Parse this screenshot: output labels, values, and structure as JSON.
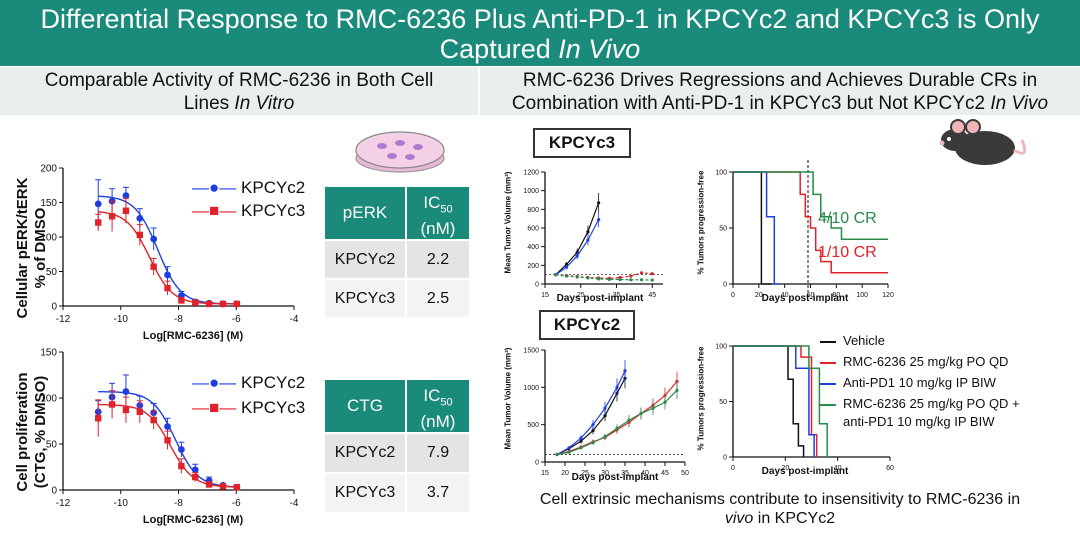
{
  "header": {
    "title_line1": "Differential Response to RMC-6236 Plus Anti-PD-1 in KPCYc2 and KPCYc3 is Only",
    "title_line2_plain": "Captured ",
    "title_line2_italic": "In Vivo"
  },
  "left_section": {
    "line1": "Comparable Activity of RMC-6236 in Both Cell",
    "line2_plain": "Lines ",
    "line2_italic": "In Vitro"
  },
  "right_section": {
    "line1": "RMC-6236 Drives Regressions and Achieves Durable CRs in",
    "line2_plain": "Combination with Anti-PD-1 in KPCYc3 but Not KPCYc2 ",
    "line2_italic": "In Vivo"
  },
  "perk_table": {
    "col1": "pERK",
    "col2_main": "IC",
    "col2_sub": "50",
    "col2_unit": "(nM)",
    "rows": [
      [
        "KPCYc2",
        "2.2"
      ],
      [
        "KPCYc3",
        "2.5"
      ]
    ]
  },
  "ctg_table": {
    "col1": "CTG",
    "col2_main": "IC",
    "col2_sub": "50",
    "col2_unit": "(nM)",
    "rows": [
      [
        "KPCYc2",
        "7.9"
      ],
      [
        "KPCYc3",
        "3.7"
      ]
    ]
  },
  "panels": {
    "kpcyc3": "KPCYc3",
    "kpcyc2": "KPCYc2"
  },
  "legend_invivo": [
    "Vehicle",
    "RMC-6236 25 mg/kg PO QD",
    "Anti-PD1 10 mg/kg IP BIW",
    "RMC-6236 25 mg/kg PO QD +",
    "anti-PD1 10 mg/kg IP BIW"
  ],
  "cr_labels": {
    "combo": "4/10 CR",
    "rmc": "1/10 CR"
  },
  "footer": {
    "line1": "Cell extrinsic mechanisms contribute to insensitivity to RMC-6236 in",
    "line2_italic": "vivo",
    "line2_plain": " in KPCYc2"
  },
  "colors": {
    "teal": "#1a8a7a",
    "blue": "#1f3ee0",
    "red": "#e0222a",
    "green": "#2a8a4a",
    "black": "#111111"
  },
  "chart_data": [
    {
      "id": "perk-dose-response",
      "type": "scatter",
      "title": "",
      "xlabel": "Log[RMC-6236] (M)",
      "ylabel_line1": "Cellular pERK/tERK",
      "ylabel_line2": "% of DMSO",
      "xlim": [
        -12,
        -4
      ],
      "ylim": [
        0,
        200
      ],
      "xticks": [
        -12,
        -10,
        -8,
        -6,
        -4
      ],
      "yticks": [
        0,
        50,
        100,
        150,
        200
      ],
      "x": [
        -10.78,
        -10.3,
        -9.82,
        -9.34,
        -8.86,
        -8.38,
        -7.9,
        -7.42,
        -6.94,
        -6.46,
        -5.98
      ],
      "series": [
        {
          "name": "KPCYc2",
          "color": "#1f3ee0",
          "marker": "circle",
          "values": [
            148,
            152,
            160,
            127,
            97,
            45,
            15,
            6,
            4,
            3,
            3
          ],
          "errors": [
            35,
            18,
            12,
            14,
            16,
            12,
            6,
            3,
            2,
            2,
            2
          ]
        },
        {
          "name": "KPCYc3",
          "color": "#e0222a",
          "marker": "square",
          "values": [
            121,
            130,
            138,
            103,
            57,
            26,
            8,
            5,
            3,
            3,
            3
          ],
          "errors": [
            12,
            22,
            18,
            15,
            12,
            10,
            4,
            2,
            2,
            1,
            1
          ]
        }
      ]
    },
    {
      "id": "ctg-dose-response",
      "type": "scatter",
      "title": "",
      "xlabel": "Log[RMC-6236] (M)",
      "ylabel_line1": "Cell proliferation",
      "ylabel_line2": "(CTG, % DMSO)",
      "xlim": [
        -12,
        -4
      ],
      "ylim": [
        0,
        150
      ],
      "xticks": [
        -12,
        -10,
        -8,
        -6,
        -4
      ],
      "yticks": [
        0,
        50,
        100,
        150
      ],
      "x": [
        -10.78,
        -10.3,
        -9.82,
        -9.34,
        -8.86,
        -8.38,
        -7.9,
        -7.42,
        -6.94,
        -6.46,
        -5.98
      ],
      "series": [
        {
          "name": "KPCYc2",
          "color": "#1f3ee0",
          "marker": "circle",
          "values": [
            85,
            101,
            107,
            92,
            84,
            69,
            44,
            22,
            10,
            5,
            3
          ],
          "errors": [
            12,
            15,
            18,
            10,
            10,
            9,
            8,
            6,
            4,
            2,
            2
          ]
        },
        {
          "name": "KPCYc3",
          "color": "#e0222a",
          "marker": "square",
          "values": [
            78,
            93,
            87,
            85,
            76,
            54,
            26,
            14,
            6,
            4,
            3
          ],
          "errors": [
            20,
            15,
            14,
            12,
            10,
            10,
            8,
            5,
            3,
            2,
            2
          ]
        }
      ]
    },
    {
      "id": "kpcyc3-tumor-volume",
      "type": "line",
      "title": "KPCYc3",
      "xlabel": "Days post-implant",
      "ylabel": "Mean Tumor Volume (mm³)",
      "xlim": [
        15,
        48
      ],
      "ylim": [
        0,
        1200
      ],
      "xticks": [
        15,
        25,
        35,
        45
      ],
      "yticks": [
        0,
        200,
        400,
        600,
        800,
        1000,
        1200
      ],
      "baseline": 100,
      "series": [
        {
          "name": "Vehicle",
          "color": "#111111",
          "x": [
            18,
            21,
            24,
            27,
            30
          ],
          "values": [
            100,
            210,
            340,
            560,
            870
          ]
        },
        {
          "name": "RMC-6236 25 mg/kg PO QD",
          "color": "#e0222a",
          "x": [
            18,
            21,
            24,
            27,
            30,
            33,
            36,
            39,
            42,
            45
          ],
          "values": [
            100,
            90,
            80,
            70,
            65,
            60,
            70,
            85,
            120,
            110
          ]
        },
        {
          "name": "Anti-PD1 10 mg/kg IP BIW",
          "color": "#1f3ee0",
          "x": [
            18,
            21,
            24,
            27,
            30
          ],
          "values": [
            100,
            180,
            300,
            470,
            690
          ]
        },
        {
          "name": "RMC-6236 25 mg/kg PO QD + anti-PD1 10 mg/kg IP BIW",
          "color": "#2a8a4a",
          "x": [
            18,
            21,
            24,
            27,
            30,
            33,
            36,
            39,
            42,
            45
          ],
          "values": [
            100,
            85,
            75,
            65,
            55,
            50,
            48,
            45,
            45,
            42
          ]
        }
      ]
    },
    {
      "id": "kpcyc3-pfs",
      "type": "line",
      "title": "",
      "xlabel": "Days post-implant",
      "ylabel": "% Tumors progression-free",
      "xlim": [
        0,
        120
      ],
      "ylim": [
        0,
        100
      ],
      "xticks": [
        0,
        20,
        40,
        60,
        80,
        100,
        120
      ],
      "yticks": [
        0,
        50,
        100
      ],
      "series": [
        {
          "name": "Vehicle",
          "color": "#111111",
          "x": [
            0,
            20,
            22,
            30
          ],
          "values": [
            100,
            100,
            0,
            0
          ]
        },
        {
          "name": "RMC-6236 25 mg/kg PO QD",
          "color": "#e0222a",
          "x": [
            0,
            48,
            52,
            56,
            60,
            64,
            68,
            76,
            120
          ],
          "values": [
            100,
            100,
            80,
            60,
            50,
            30,
            20,
            10,
            10
          ]
        },
        {
          "name": "Anti-PD1 10 mg/kg IP BIW",
          "color": "#1f3ee0",
          "x": [
            0,
            22,
            26,
            32,
            36
          ],
          "values": [
            100,
            100,
            60,
            0,
            0
          ]
        },
        {
          "name": "RMC-6236 25 mg/kg PO QD + anti-PD1 10 mg/kg IP BIW",
          "color": "#2a8a4a",
          "x": [
            0,
            58,
            62,
            68,
            76,
            84,
            120
          ],
          "values": [
            100,
            100,
            80,
            60,
            50,
            40,
            40
          ]
        }
      ]
    },
    {
      "id": "kpcyc2-tumor-volume",
      "type": "line",
      "title": "KPCYc2",
      "xlabel": "Days post-implant",
      "ylabel": "Mean Tumor Volume (mm³)",
      "xlim": [
        15,
        50
      ],
      "ylim": [
        0,
        1500
      ],
      "xticks": [
        15,
        20,
        25,
        30,
        35,
        40,
        45,
        50
      ],
      "yticks": [
        0,
        500,
        1000,
        1500
      ],
      "baseline": 100,
      "series": [
        {
          "name": "Vehicle",
          "color": "#111111",
          "x": [
            18,
            21,
            24,
            27,
            30,
            33,
            35
          ],
          "values": [
            100,
            180,
            280,
            420,
            620,
            920,
            1120
          ]
        },
        {
          "name": "RMC-6236 25 mg/kg PO QD",
          "color": "#e0222a",
          "x": [
            18,
            21,
            24,
            27,
            30,
            33,
            36,
            39,
            42,
            45,
            48
          ],
          "values": [
            100,
            140,
            200,
            270,
            330,
            430,
            530,
            650,
            760,
            890,
            1080
          ]
        },
        {
          "name": "Anti-PD1 10 mg/kg IP BIW",
          "color": "#1f3ee0",
          "x": [
            18,
            21,
            24,
            27,
            30,
            33,
            35
          ],
          "values": [
            100,
            190,
            320,
            500,
            720,
            1000,
            1220
          ]
        },
        {
          "name": "RMC-6236 25 mg/kg PO QD + anti-PD1 10 mg/kg IP BIW",
          "color": "#2a8a4a",
          "x": [
            18,
            21,
            24,
            27,
            30,
            33,
            36,
            39,
            42,
            45,
            48
          ],
          "values": [
            100,
            130,
            190,
            260,
            340,
            450,
            560,
            650,
            720,
            800,
            960
          ]
        }
      ]
    },
    {
      "id": "kpcyc2-pfs",
      "type": "line",
      "title": "",
      "xlabel": "Days post-implant",
      "ylabel": "% Tumors progression-free",
      "xlim": [
        0,
        60
      ],
      "ylim": [
        0,
        100
      ],
      "xticks": [
        0,
        20,
        40,
        60
      ],
      "yticks": [
        0,
        50,
        100
      ],
      "series": [
        {
          "name": "Vehicle",
          "color": "#111111",
          "x": [
            0,
            19,
            21,
            23,
            25,
            27
          ],
          "values": [
            100,
            100,
            70,
            30,
            10,
            0
          ]
        },
        {
          "name": "RMC-6236 25 mg/kg PO QD",
          "color": "#e0222a",
          "x": [
            0,
            22,
            26,
            30,
            32
          ],
          "values": [
            100,
            100,
            90,
            20,
            0
          ]
        },
        {
          "name": "Anti-PD1 10 mg/kg IP BIW",
          "color": "#1f3ee0",
          "x": [
            0,
            21,
            24,
            29,
            31
          ],
          "values": [
            100,
            100,
            80,
            20,
            0
          ]
        },
        {
          "name": "RMC-6236 25 mg/kg PO QD + anti-PD1 10 mg/kg IP BIW",
          "color": "#2a8a4a",
          "x": [
            0,
            25,
            29,
            33,
            36
          ],
          "values": [
            100,
            100,
            80,
            30,
            0
          ]
        }
      ]
    }
  ]
}
